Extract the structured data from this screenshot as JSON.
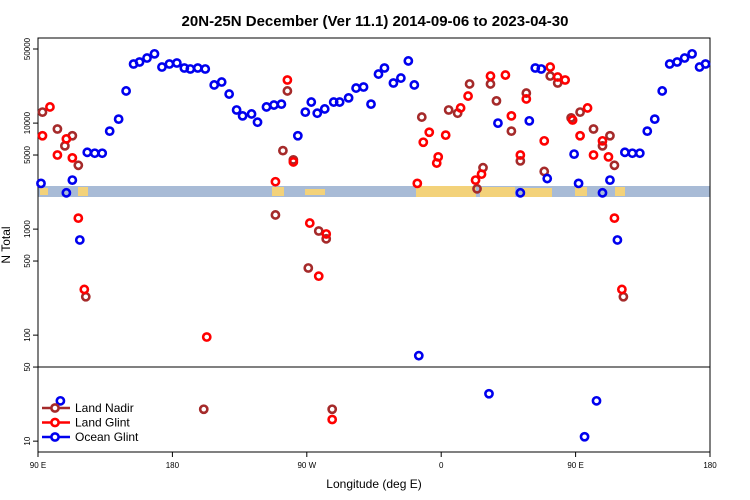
{
  "chart_data": {
    "type": "scatter",
    "title": "20N-25N December (Ver 11.1)   2014-09-06 to 2023-04-30",
    "xlabel": "Longitude (deg E)",
    "ylabel": "N Total",
    "log_y": true,
    "legend": "lower left",
    "xlim": [
      90,
      540
    ],
    "xticks": [
      {
        "value": 90,
        "label": "90 E"
      },
      {
        "value": 180,
        "label": "180"
      },
      {
        "value": 270,
        "label": "90 W"
      },
      {
        "value": 360,
        "label": "0"
      },
      {
        "value": 450,
        "label": "90 E"
      },
      {
        "value": 540,
        "label": "180"
      }
    ],
    "ylim": [
      7.9,
      63500
    ],
    "yticks": [
      10,
      50,
      100,
      500,
      1000,
      5000,
      10000,
      50000
    ],
    "series": [
      {
        "name": "Land Nadir",
        "color": "#a52a2a",
        "x": [
          93,
          103,
          108,
          113,
          117,
          122,
          201,
          249,
          254,
          261,
          257,
          271,
          278,
          283,
          287,
          347,
          365,
          371,
          379,
          384,
          388,
          393,
          397,
          407,
          413,
          417,
          429,
          433,
          438,
          447,
          453,
          462,
          468,
          473,
          476,
          482
        ],
        "values": [
          12700,
          8800,
          6100,
          7600,
          4000,
          230,
          20,
          1360,
          5500,
          4500,
          20100,
          430,
          960,
          810,
          20,
          11400,
          13300,
          12400,
          23400,
          2400,
          3800,
          23400,
          16200,
          8400,
          4400,
          19200,
          3500,
          27800,
          23900,
          11200,
          12700,
          8800,
          6100,
          7600,
          4000,
          230
        ]
      },
      {
        "name": "Land Glint",
        "color": "#ff0000",
        "x": [
          93,
          98,
          103,
          109,
          113,
          117,
          121,
          203,
          249,
          257,
          261,
          272,
          278,
          283,
          287,
          344,
          348,
          352,
          357,
          358,
          363,
          373,
          378,
          383,
          387,
          393,
          403,
          407,
          413,
          417,
          429,
          433,
          438,
          443,
          448,
          453,
          458,
          462,
          468,
          472,
          476,
          481
        ],
        "values": [
          7600,
          14200,
          5000,
          7100,
          4700,
          1270,
          270,
          96,
          2800,
          25500,
          4300,
          1140,
          360,
          900,
          16,
          2700,
          6600,
          8200,
          4200,
          4800,
          7700,
          13900,
          18000,
          2900,
          3300,
          27800,
          28400,
          11700,
          5000,
          16900,
          6800,
          33800,
          27200,
          25500,
          10700,
          7600,
          13900,
          5000,
          6800,
          4800,
          1270,
          270
        ]
      },
      {
        "name": "Ocean Glint",
        "color": "#0000ee",
        "x": [
          92,
          105,
          109,
          113,
          118,
          123,
          128,
          133,
          138,
          144,
          149,
          154,
          158,
          163,
          168,
          173,
          178,
          183,
          188,
          192,
          197,
          202,
          208,
          213,
          218,
          223,
          227,
          233,
          237,
          243,
          248,
          253,
          264,
          269,
          273,
          277,
          282,
          288,
          292,
          298,
          303,
          308,
          313,
          318,
          322,
          328,
          333,
          338,
          342,
          345,
          392,
          398,
          413,
          419,
          423,
          427,
          431,
          449,
          452,
          456,
          464,
          468,
          473,
          478,
          483,
          488,
          493,
          498,
          503,
          508,
          513,
          518,
          523,
          528,
          533,
          537
        ],
        "values": [
          2700,
          24,
          2200,
          2900,
          790,
          5300,
          5200,
          5200,
          8400,
          10900,
          20100,
          36100,
          37700,
          41100,
          45000,
          33800,
          36100,
          36900,
          33100,
          32400,
          33100,
          32400,
          22900,
          24400,
          18800,
          13300,
          11700,
          12200,
          10200,
          14200,
          14800,
          15100,
          7600,
          12700,
          15800,
          12400,
          13600,
          15800,
          15800,
          17300,
          21400,
          21900,
          15100,
          29000,
          33100,
          23900,
          26600,
          38600,
          22900,
          64,
          28,
          10000,
          2200,
          10500,
          33100,
          32400,
          3000,
          5100,
          2700,
          11,
          24,
          2200,
          2900,
          790,
          5300,
          5200,
          5200,
          8400,
          10900,
          20100,
          36100,
          37700,
          41100,
          45000,
          33800,
          36100
        ]
      }
    ]
  }
}
